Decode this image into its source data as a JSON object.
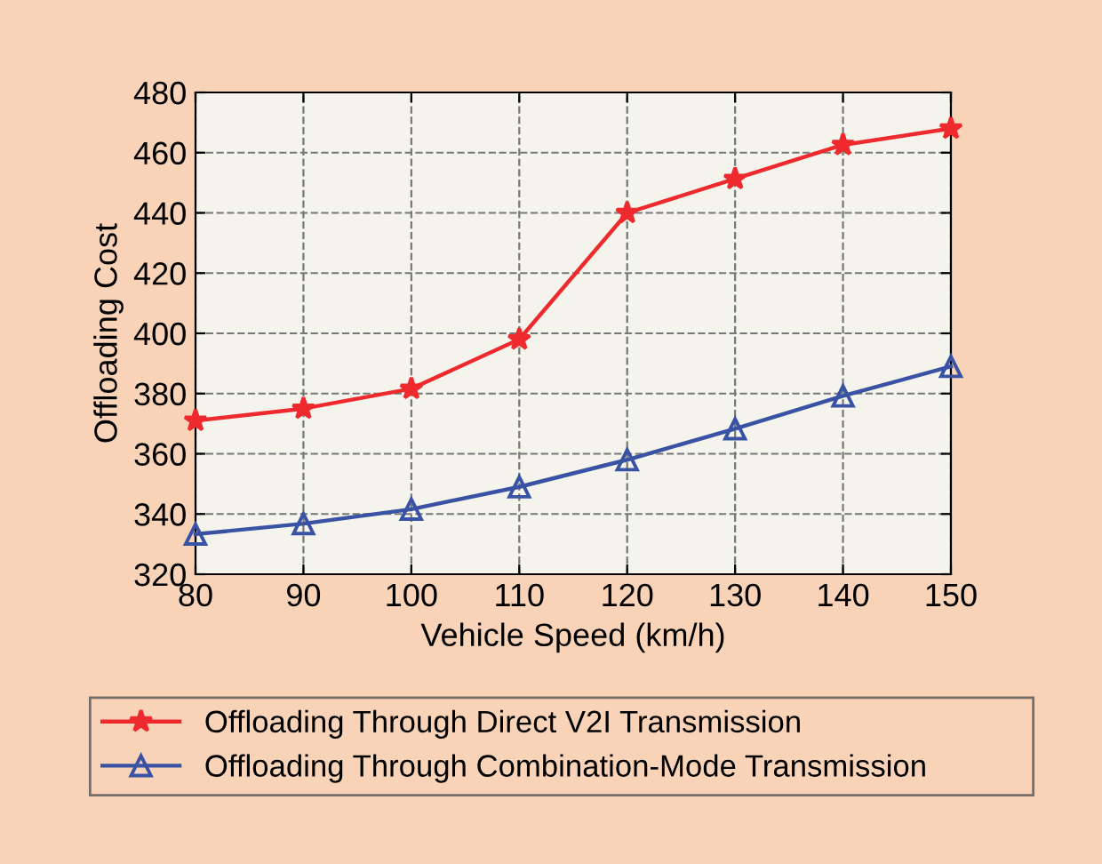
{
  "chart_data": {
    "type": "line",
    "xlabel": "Vehicle Speed (km/h)",
    "ylabel": "Offloading Cost",
    "x": [
      80,
      90,
      100,
      110,
      120,
      130,
      140,
      150
    ],
    "series": [
      {
        "name": "Offloading Through Direct V2I Transmission",
        "color": "#ee2a2e",
        "marker": "star",
        "values": [
          371,
          375,
          381.6,
          398,
          440,
          451.3,
          462.6,
          468
        ]
      },
      {
        "name": "Offloading Through Combination-Mode Transmission",
        "color": "#3a52a4",
        "marker": "triangle",
        "values": [
          333.3,
          336.8,
          341.6,
          349,
          358,
          368.3,
          379.2,
          389
        ]
      }
    ],
    "xlim": [
      80,
      150
    ],
    "xticks": [
      80,
      90,
      100,
      110,
      120,
      130,
      140,
      150
    ],
    "ylim": [
      320,
      480
    ],
    "yticks": [
      320,
      340,
      360,
      380,
      400,
      420,
      440,
      460,
      480
    ],
    "grid": true,
    "legend": "bottom",
    "line_style": "solid"
  }
}
